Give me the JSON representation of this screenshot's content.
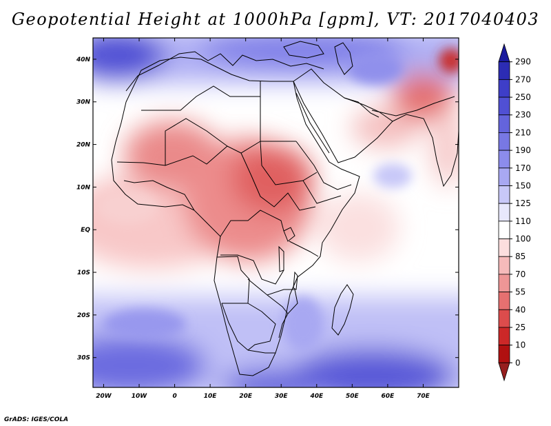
{
  "title": "Geopotential Height at 1000hPa [gpm], VT: 2017040403",
  "credit": "GrADS: IGES/COLA",
  "map": {
    "region": "Africa and surrounding oceans",
    "lon_range": [
      -23,
      80
    ],
    "lat_range": [
      -37,
      45
    ],
    "projection": "latlon",
    "lon_ticks": [
      "20W",
      "10W",
      "0",
      "10E",
      "20E",
      "30E",
      "40E",
      "50E",
      "60E",
      "70E"
    ],
    "lat_ticks": [
      "40N",
      "30N",
      "20N",
      "10N",
      "EQ",
      "10S",
      "20S",
      "30S"
    ]
  },
  "colorbar": {
    "levels": [
      "290",
      "270",
      "250",
      "230",
      "210",
      "190",
      "170",
      "150",
      "125",
      "110",
      "100",
      "85",
      "70",
      "55",
      "40",
      "25",
      "10",
      "0"
    ],
    "colors": [
      "#1a1a9e",
      "#2c2cb4",
      "#3e3ec8",
      "#5050d4",
      "#6464dc",
      "#7878e4",
      "#8c8cec",
      "#a8a8f2",
      "#c8c8f8",
      "#e8e8fc",
      "#ffffff",
      "#fcdede",
      "#f6baba",
      "#ee9696",
      "#e67070",
      "#dc4c4c",
      "#cc2828",
      "#b01010",
      "#961e1e"
    ]
  }
}
